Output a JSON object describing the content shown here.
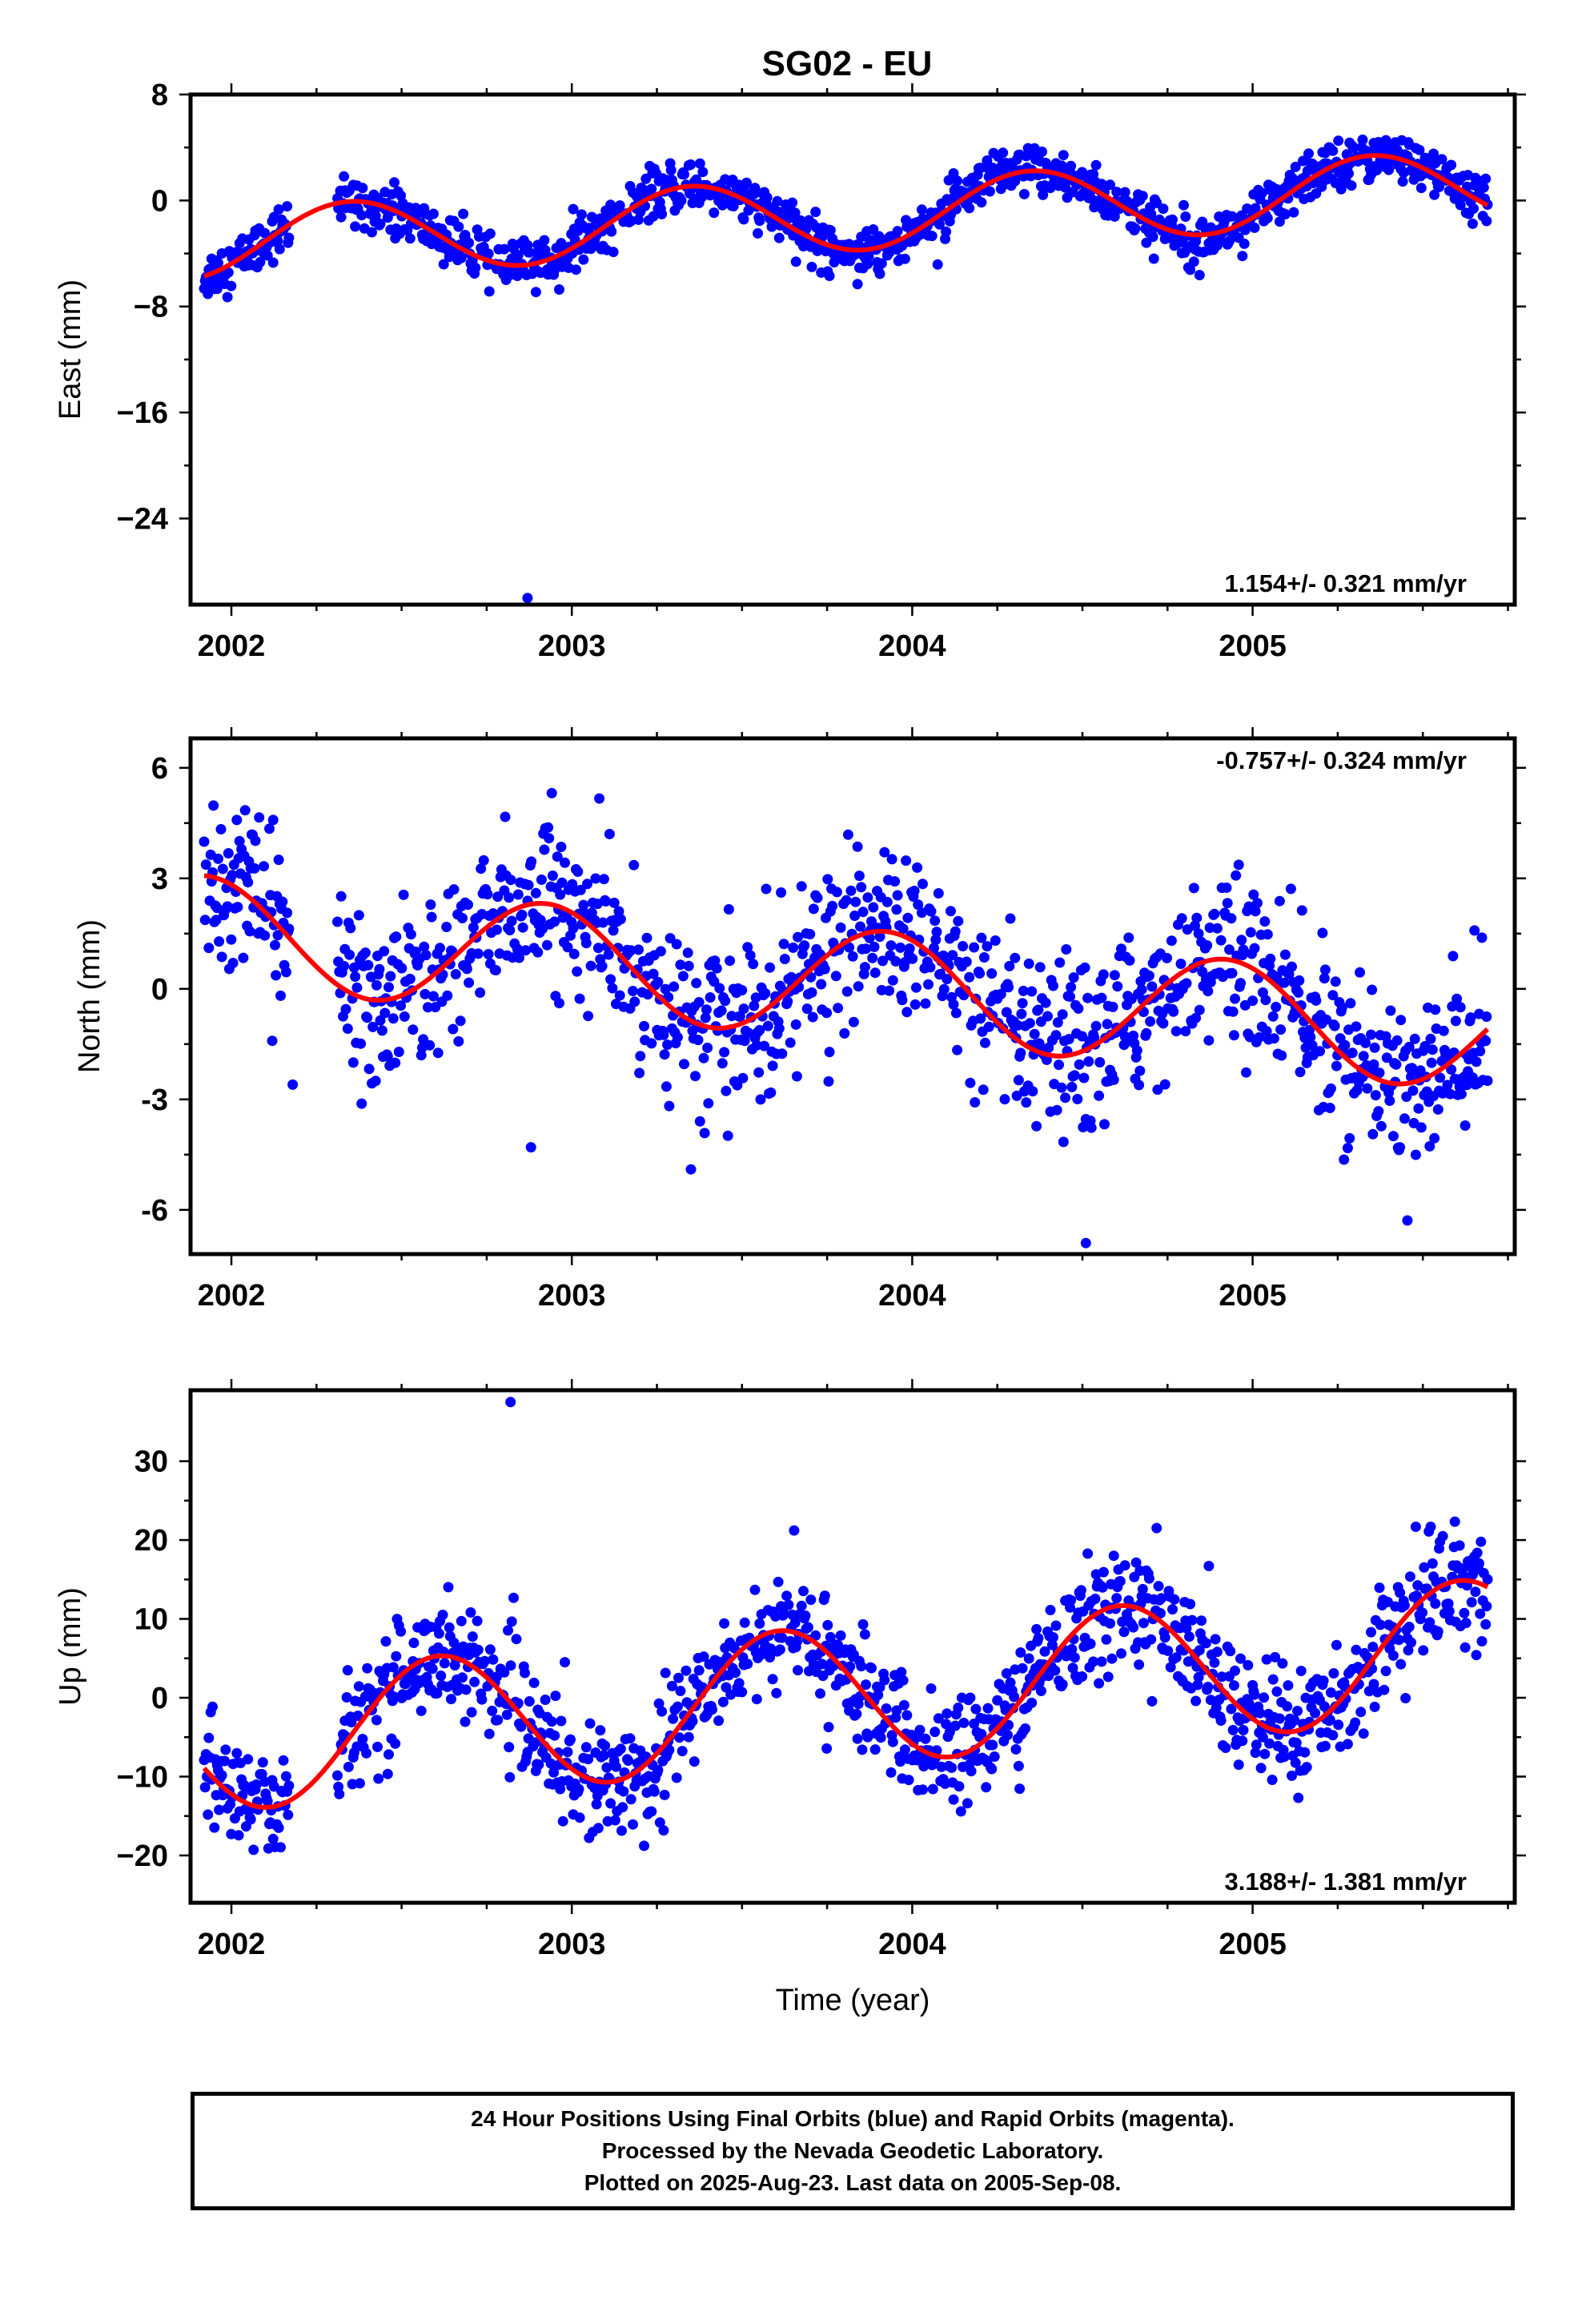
{
  "title": "SG02 - EU",
  "colors": {
    "data_points": "#0000ff",
    "fit_line": "#ff0000",
    "axes": "#000000"
  },
  "footer": {
    "line1": "24 Hour Positions Using Final Orbits (blue) and Rapid Orbits (magenta).",
    "line2": "Processed by the Nevada Geodetic Laboratory.",
    "line3": "Plotted on 2025-Aug-23. Last data on 2005-Sep-08."
  },
  "chart_data": [
    {
      "type": "scatter",
      "component": "East",
      "ylabel": "East (mm)",
      "xlabel": "",
      "xlim": [
        2001.88,
        2005.77
      ],
      "ylim": [
        -30.5,
        8
      ],
      "xticks": [
        2002,
        2003,
        2004,
        2005
      ],
      "yticks": [
        8,
        0,
        -8,
        -16,
        -24
      ],
      "yticklabels": [
        "8",
        "0",
        "−8",
        "−16",
        "−24"
      ],
      "rate_label": "1.154+/- 0.321 mm/yr",
      "rate_position": "bottom-right",
      "data_start": 2001.92,
      "data_end": 2005.69,
      "fit": {
        "offset": -1.1,
        "rate": 1.154,
        "t0": 2003.8,
        "amplitude": 2.7,
        "peak": 2001.35
      },
      "noise_sd": 0.9,
      "outliers": [
        {
          "x": 2002.87,
          "y": -30.0
        }
      ]
    },
    {
      "type": "scatter",
      "component": "North",
      "ylabel": "North (mm)",
      "xlabel": "",
      "xlim": [
        2001.88,
        2005.77
      ],
      "ylim": [
        -7.2,
        6.8
      ],
      "xticks": [
        2002,
        2003,
        2004,
        2005
      ],
      "yticks": [
        6,
        3,
        0,
        -3,
        -6
      ],
      "yticklabels": [
        "6",
        "3",
        "0",
        "-3",
        "-6"
      ],
      "rate_label": "-0.757+/- 0.324 mm/yr",
      "rate_position": "top-right",
      "data_start": 2001.92,
      "data_end": 2005.69,
      "fit": {
        "offset": 0.15,
        "rate": -0.757,
        "t0": 2003.8,
        "amplitude": 1.5,
        "peak": 2001.92
      },
      "noise_sd": 1.1,
      "outliers": [
        {
          "x": 2004.51,
          "y": -6.9
        },
        {
          "x": 2002.88,
          "y": -4.3
        },
        {
          "x": 2002.18,
          "y": -2.6
        },
        {
          "x": 2003.35,
          "y": -4.9
        }
      ]
    },
    {
      "type": "scatter",
      "component": "Up",
      "ylabel": "Up (mm)",
      "xlabel": "Time (year)",
      "xlim": [
        2001.88,
        2005.77
      ],
      "ylim": [
        -26,
        39
      ],
      "xticks": [
        2002,
        2003,
        2004,
        2005
      ],
      "yticks": [
        30,
        20,
        10,
        0,
        -10,
        -20
      ],
      "yticklabels": [
        "30",
        "20",
        "10",
        "0",
        "−10",
        "−20"
      ],
      "rate_label": "3.188+/- 1.381 mm/yr",
      "rate_position": "bottom-right",
      "data_start": 2001.92,
      "data_end": 2005.69,
      "fit": {
        "offset": 0.3,
        "rate": 3.188,
        "t0": 2003.8,
        "amplitude": 8.8,
        "peak": 2001.61
      },
      "noise_sd": 3.6,
      "outliers": [
        {
          "x": 2002.82,
          "y": 37.5
        }
      ]
    }
  ]
}
